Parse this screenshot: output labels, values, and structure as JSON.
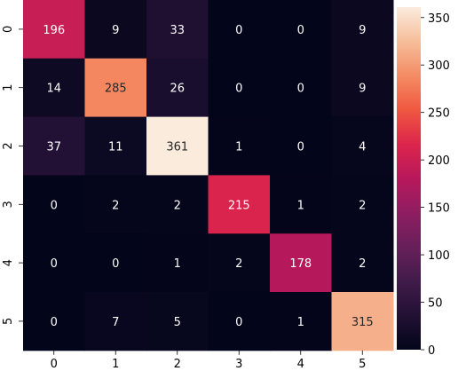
{
  "chart_data": {
    "type": "heatmap",
    "title": "",
    "xlabel": "",
    "ylabel": "",
    "x_categories": [
      "0",
      "1",
      "2",
      "3",
      "4",
      "5"
    ],
    "y_categories": [
      "0",
      "1",
      "2",
      "3",
      "4",
      "5"
    ],
    "values": [
      [
        196,
        9,
        33,
        0,
        0,
        9
      ],
      [
        14,
        285,
        26,
        0,
        0,
        9
      ],
      [
        37,
        11,
        361,
        1,
        0,
        4
      ],
      [
        0,
        2,
        2,
        215,
        1,
        2
      ],
      [
        0,
        0,
        1,
        2,
        178,
        2
      ],
      [
        0,
        7,
        5,
        0,
        1,
        315
      ]
    ],
    "colorbar": {
      "min": 0,
      "max": 361,
      "ticks": [
        0,
        50,
        100,
        150,
        200,
        250,
        300,
        350
      ],
      "colormap": "rocket",
      "low_color": "#03051a",
      "high_color": "#faebdd"
    }
  }
}
